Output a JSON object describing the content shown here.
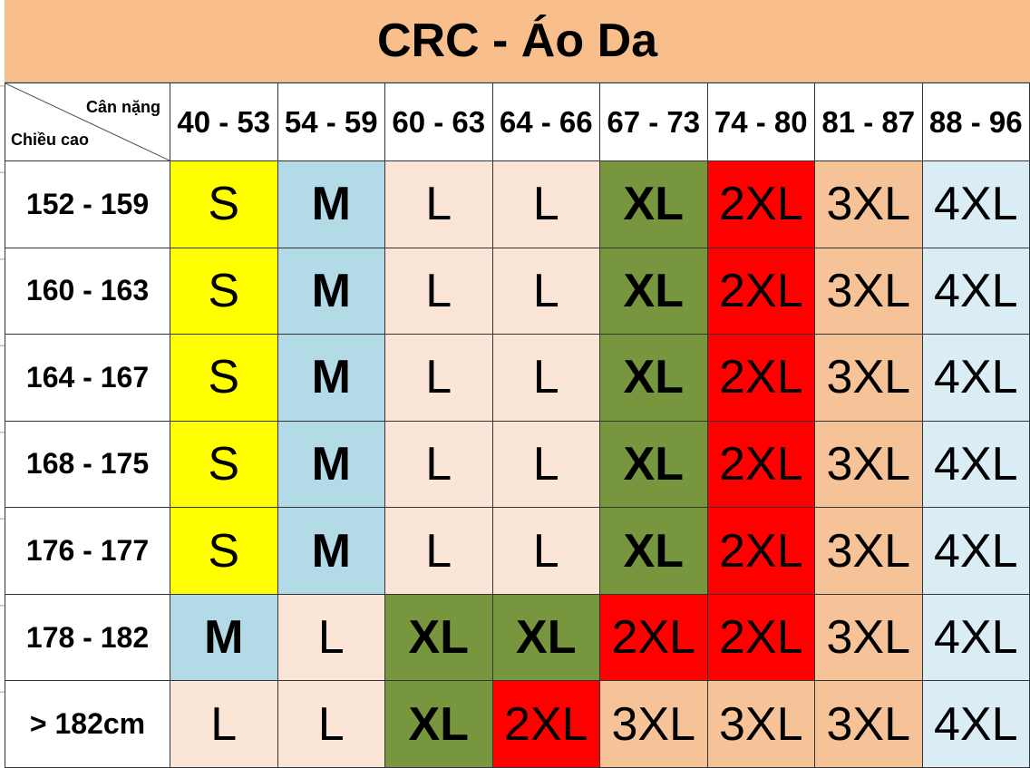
{
  "title": "CRC - Áo Da",
  "corner": {
    "weight_label": "Cân nặng",
    "height_label": "Chiều cao"
  },
  "weight_columns": [
    "40 - 53",
    "54 - 59",
    "60 - 63",
    "64 - 66",
    "67 - 73",
    "74 - 80",
    "81 - 87",
    "88 - 96"
  ],
  "rows": [
    {
      "height_range": "152 - 159",
      "sizes": [
        "S",
        "M",
        "L",
        "L",
        "XL",
        "2XL",
        "3XL",
        "4XL"
      ]
    },
    {
      "height_range": "160 - 163",
      "sizes": [
        "S",
        "M",
        "L",
        "L",
        "XL",
        "2XL",
        "3XL",
        "4XL"
      ]
    },
    {
      "height_range": "164 - 167",
      "sizes": [
        "S",
        "M",
        "L",
        "L",
        "XL",
        "2XL",
        "3XL",
        "4XL"
      ]
    },
    {
      "height_range": "168 - 175",
      "sizes": [
        "S",
        "M",
        "L",
        "L",
        "XL",
        "2XL",
        "3XL",
        "4XL"
      ]
    },
    {
      "height_range": "176 - 177",
      "sizes": [
        "S",
        "M",
        "L",
        "L",
        "XL",
        "2XL",
        "3XL",
        "4XL"
      ]
    },
    {
      "height_range": "178 - 182",
      "sizes": [
        "M",
        "L",
        "XL",
        "XL",
        "2XL",
        "2XL",
        "3XL",
        "4XL"
      ]
    },
    {
      "height_range": "> 182cm",
      "sizes": [
        "L",
        "L",
        "XL",
        "2XL",
        "3XL",
        "3XL",
        "3XL",
        "4XL"
      ]
    }
  ],
  "colors": {
    "title_bg": "#F8BE8C",
    "S": "#FFFF00",
    "M": "#B3DAE7",
    "L": "#FBE5D6",
    "XL": "#78963E",
    "2XL": "#FE0000",
    "3XL": "#F6C298",
    "4XL": "#DBEDF4"
  },
  "bold_sizes": [
    "M",
    "XL"
  ]
}
